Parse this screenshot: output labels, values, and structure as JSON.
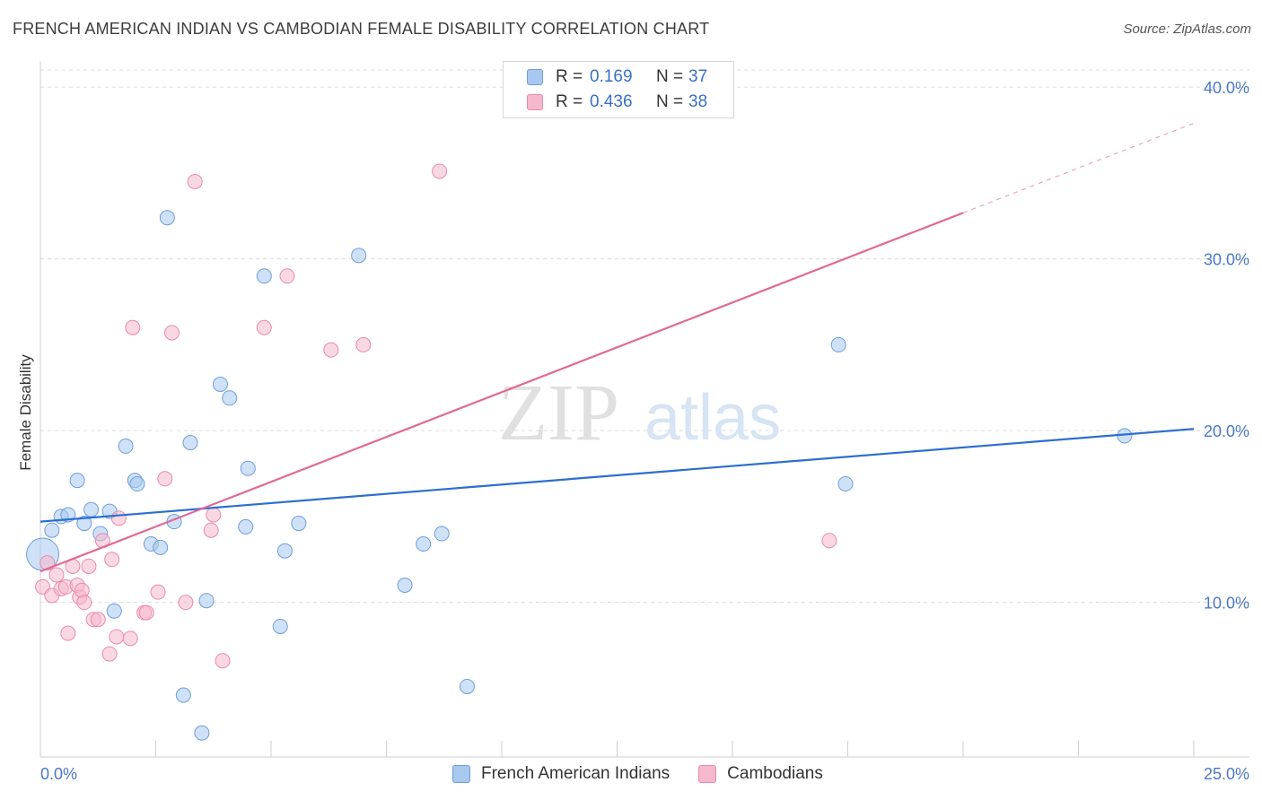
{
  "title": "FRENCH AMERICAN INDIAN VS CAMBODIAN FEMALE DISABILITY CORRELATION CHART",
  "source": "Source: ZipAtlas.com",
  "watermark": {
    "zip": "ZIP",
    "atlas": "atlas"
  },
  "legend": {
    "rows": [
      {
        "r_label": "R =",
        "r_value": "0.169",
        "n_label": "N =",
        "n_value": "37",
        "color": "#a8c8f0"
      },
      {
        "r_label": "R =",
        "r_value": "0.436",
        "n_label": "N =",
        "n_value": "38",
        "color": "#f5b8cc"
      }
    ]
  },
  "bottom_legend": [
    {
      "label": "French American Indians",
      "color": "#a8c8f0"
    },
    {
      "label": "Cambodians",
      "color": "#f5b8cc"
    }
  ],
  "chart_data": {
    "type": "scatter",
    "title": "FRENCH AMERICAN INDIAN VS CAMBODIAN FEMALE DISABILITY CORRELATION CHART",
    "xlabel": "",
    "ylabel": "Female Disability",
    "xlim": [
      0,
      25
    ],
    "ylim": [
      1.0,
      41.0
    ],
    "x_tick_labels": [
      "0.0%",
      "25.0%"
    ],
    "y_ticks": [
      10,
      20,
      30,
      40
    ],
    "y_tick_labels": [
      "10.0%",
      "20.0%",
      "30.0%",
      "40.0%"
    ],
    "grid": true,
    "legend_position": "top-center",
    "series": [
      {
        "name": "French American Indians",
        "color": "#a8c8f0",
        "stroke": "#6f9fd8",
        "trend_color": "#2b6fcf",
        "trend": {
          "x0": 0,
          "y0": 14.7,
          "x1": 25,
          "y1": 20.1,
          "dash_from_x": 25
        },
        "points": [
          [
            0.05,
            12.8
          ],
          [
            0.25,
            14.2
          ],
          [
            0.45,
            15.0
          ],
          [
            0.6,
            15.1
          ],
          [
            0.8,
            17.1
          ],
          [
            0.95,
            14.6
          ],
          [
            1.1,
            15.4
          ],
          [
            1.3,
            14.0
          ],
          [
            1.5,
            15.3
          ],
          [
            1.6,
            9.5
          ],
          [
            1.85,
            19.1
          ],
          [
            2.05,
            17.1
          ],
          [
            2.1,
            16.9
          ],
          [
            2.4,
            13.4
          ],
          [
            2.6,
            13.2
          ],
          [
            2.75,
            32.4
          ],
          [
            2.9,
            14.7
          ],
          [
            3.25,
            19.3
          ],
          [
            3.1,
            4.6
          ],
          [
            3.5,
            2.4
          ],
          [
            3.6,
            10.1
          ],
          [
            3.9,
            22.7
          ],
          [
            4.1,
            21.9
          ],
          [
            4.5,
            17.8
          ],
          [
            4.45,
            14.4
          ],
          [
            4.85,
            29.0
          ],
          [
            5.2,
            8.6
          ],
          [
            5.3,
            13.0
          ],
          [
            5.6,
            14.6
          ],
          [
            6.9,
            30.2
          ],
          [
            7.9,
            11.0
          ],
          [
            8.3,
            13.4
          ],
          [
            8.7,
            14.0
          ],
          [
            9.25,
            5.1
          ],
          [
            17.3,
            25.0
          ],
          [
            17.45,
            16.9
          ],
          [
            23.5,
            19.7
          ]
        ]
      },
      {
        "name": "Cambodians",
        "color": "#f5b8cc",
        "stroke": "#e88aab",
        "trend_color": "#e06a95",
        "trend": {
          "x0": 0,
          "y0": 11.8,
          "x1": 25,
          "y1": 37.9,
          "dash_from_x": 20.0
        },
        "points": [
          [
            0.05,
            10.9
          ],
          [
            0.15,
            12.3
          ],
          [
            0.25,
            10.4
          ],
          [
            0.35,
            11.6
          ],
          [
            0.45,
            10.8
          ],
          [
            0.55,
            10.9
          ],
          [
            0.6,
            8.2
          ],
          [
            0.7,
            12.1
          ],
          [
            0.8,
            11.0
          ],
          [
            0.85,
            10.3
          ],
          [
            0.9,
            10.7
          ],
          [
            0.95,
            10.0
          ],
          [
            1.05,
            12.1
          ],
          [
            1.15,
            9.0
          ],
          [
            1.25,
            9.0
          ],
          [
            1.35,
            13.6
          ],
          [
            1.5,
            7.0
          ],
          [
            1.55,
            12.5
          ],
          [
            1.65,
            8.0
          ],
          [
            1.7,
            14.9
          ],
          [
            1.95,
            7.9
          ],
          [
            2.0,
            26.0
          ],
          [
            2.25,
            9.4
          ],
          [
            2.3,
            9.4
          ],
          [
            2.55,
            10.6
          ],
          [
            2.7,
            17.2
          ],
          [
            2.85,
            25.7
          ],
          [
            3.15,
            10.0
          ],
          [
            3.35,
            34.5
          ],
          [
            3.7,
            14.2
          ],
          [
            3.75,
            15.1
          ],
          [
            3.95,
            6.6
          ],
          [
            4.85,
            26.0
          ],
          [
            5.35,
            29.0
          ],
          [
            6.3,
            24.7
          ],
          [
            7.0,
            25.0
          ],
          [
            8.65,
            35.1
          ],
          [
            17.1,
            13.6
          ]
        ]
      }
    ]
  }
}
